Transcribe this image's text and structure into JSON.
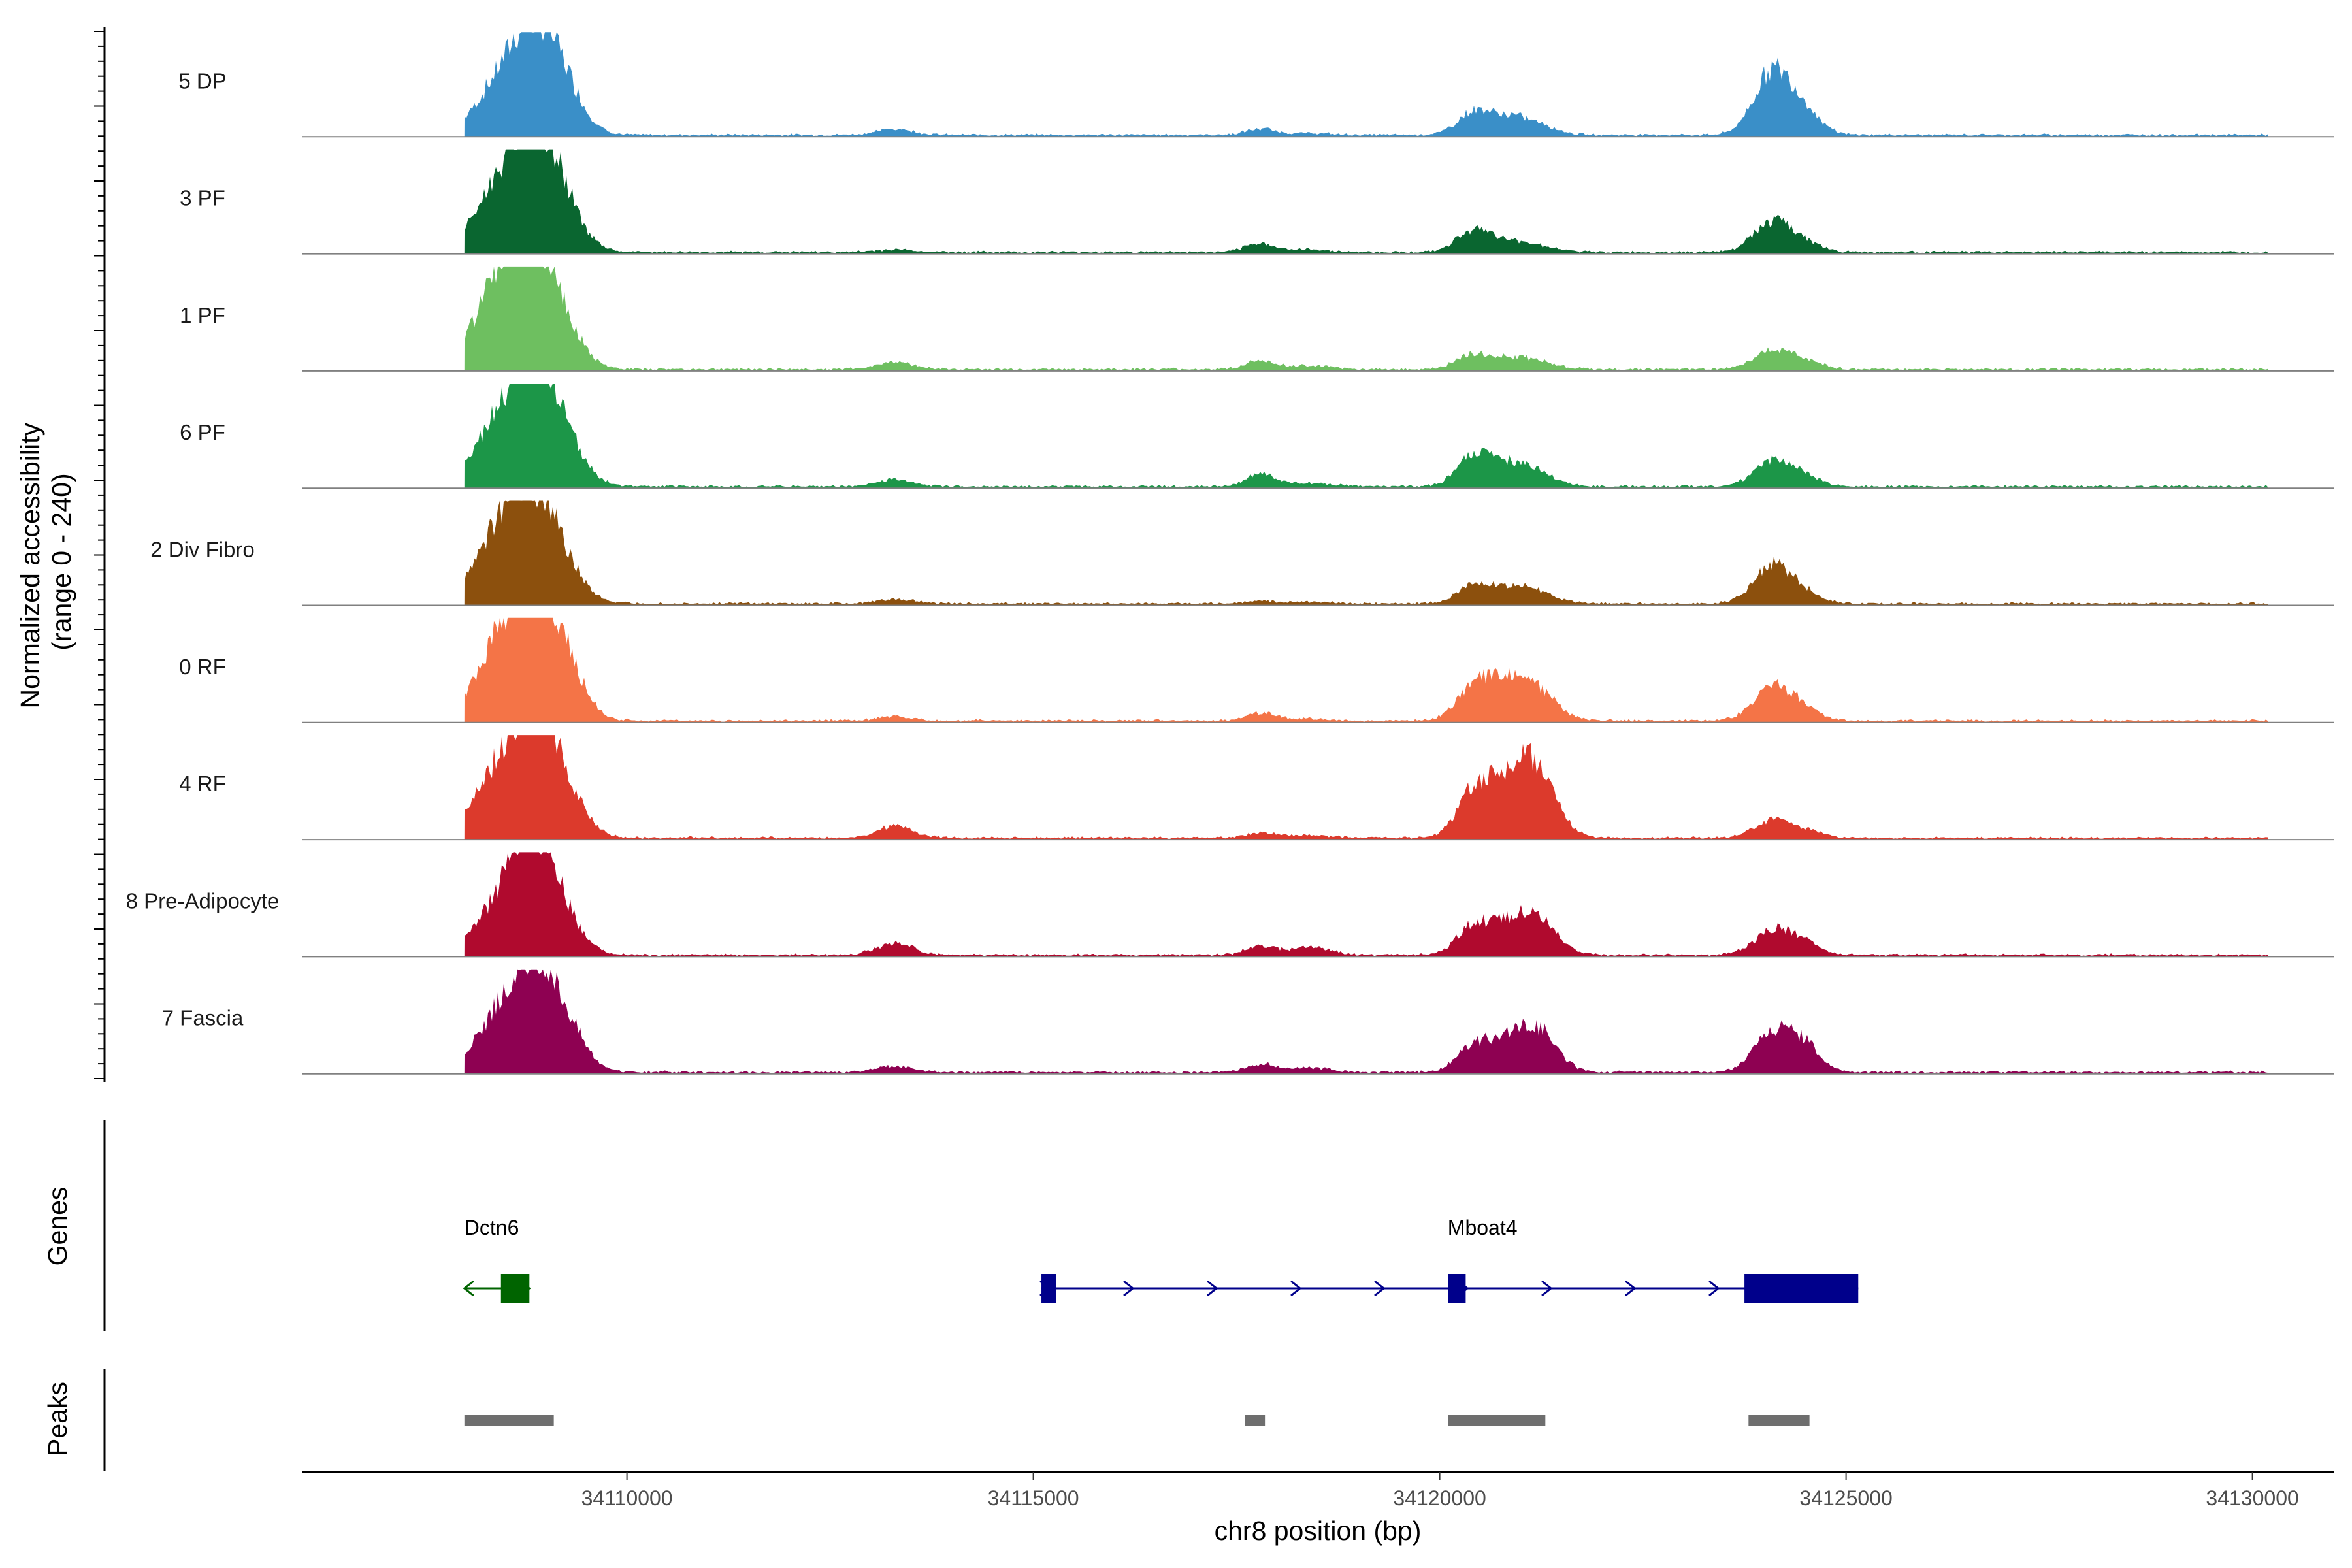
{
  "chart_data": {
    "type": "area",
    "title": "",
    "y_axis_title_line1": "Normalized accessibility",
    "y_axis_title_line2": "(range 0 - 240)",
    "ylim": [
      0,
      240
    ],
    "xlabel": "chr8 position (bp)",
    "xlim": [
      34106000,
      34131000
    ],
    "x_ticks": [
      34110000,
      34115000,
      34120000,
      34125000,
      34130000
    ],
    "x_tick_labels": [
      "34110000",
      "34115000",
      "34120000",
      "34125000",
      "34130000"
    ],
    "peak_centers": [
      34108400,
      34108850,
      34109200,
      34113300,
      34117800,
      34118400,
      34120400,
      34120800,
      34121200,
      34124100,
      34124500
    ],
    "series": [
      {
        "name": "5 DP",
        "color": "#3a8fc8",
        "values": [
          95,
          210,
          90,
          14,
          14,
          4,
          45,
          38,
          20,
          150,
          48
        ]
      },
      {
        "name": "3 PF",
        "color": "#0a6630",
        "values": [
          125,
          235,
          80,
          6,
          20,
          6,
          48,
          22,
          12,
          72,
          18
        ]
      },
      {
        "name": "1 PF",
        "color": "#6ebf60",
        "values": [
          170,
          240,
          65,
          18,
          20,
          8,
          30,
          22,
          16,
          45,
          18
        ]
      },
      {
        "name": "6 PF",
        "color": "#1c9648",
        "values": [
          130,
          210,
          95,
          16,
          28,
          8,
          60,
          50,
          26,
          60,
          20
        ]
      },
      {
        "name": "2 Div Fibro",
        "color": "#8c500d",
        "values": [
          145,
          210,
          62,
          10,
          6,
          4,
          38,
          30,
          24,
          92,
          20
        ]
      },
      {
        "name": "0 RF",
        "color": "#f47447",
        "values": [
          150,
          240,
          110,
          10,
          18,
          4,
          70,
          78,
          62,
          80,
          24
        ]
      },
      {
        "name": "4 RF",
        "color": "#dc3a2c",
        "values": [
          132,
          220,
          92,
          28,
          12,
          6,
          90,
          110,
          150,
          40,
          16
        ]
      },
      {
        "name": "8 Pre-Adipocyte",
        "color": "#b00a2e",
        "values": [
          90,
          240,
          50,
          28,
          20,
          18,
          55,
          60,
          80,
          58,
          26
        ]
      },
      {
        "name": "7 Fascia",
        "color": "#8e0152",
        "values": [
          110,
          180,
          100,
          14,
          18,
          10,
          48,
          60,
          90,
          95,
          55
        ]
      }
    ],
    "genes": [
      {
        "name": "Dctn6",
        "strand": "-",
        "start": 34108000,
        "end": 34108800,
        "color": "#006400",
        "exons": [
          [
            34108450,
            34108800
          ]
        ]
      },
      {
        "name": "Mboat4",
        "strand": "+",
        "start": 34115100,
        "end": 34125150,
        "color": "#00008b",
        "exons": [
          [
            34115100,
            34115280
          ],
          [
            34120100,
            34120320
          ],
          [
            34123750,
            34125150
          ]
        ]
      }
    ],
    "peaks": [
      [
        34108000,
        34109100
      ],
      [
        34117600,
        34117850
      ],
      [
        34120100,
        34121300
      ],
      [
        34123800,
        34124550
      ]
    ],
    "peak_color": "#6e6e6e",
    "genes_track_label": "Genes",
    "peaks_track_label": "Peaks"
  }
}
